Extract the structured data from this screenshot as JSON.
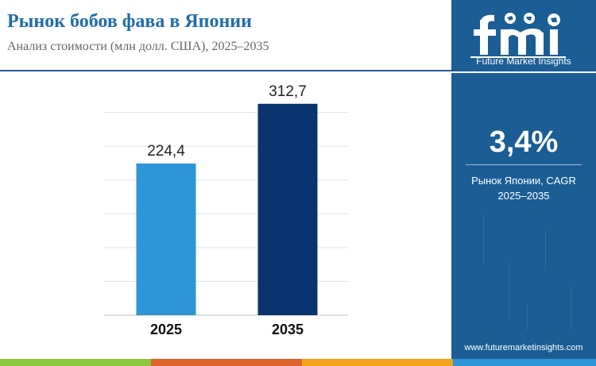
{
  "header": {
    "title": "Рынок бобов фава в Японии",
    "subtitle": "Анализ стоимости (млн долл. США), 2025–2035"
  },
  "chart_data": {
    "type": "bar",
    "categories": [
      "2025",
      "2035"
    ],
    "values": [
      224.4,
      312.7
    ],
    "value_labels": [
      "224,4",
      "312,7"
    ],
    "bar_colors": [
      "#2e95d6",
      "#0a3470"
    ],
    "ylim": [
      0,
      350
    ],
    "grid": true,
    "title": "",
    "xlabel": "",
    "ylabel": ""
  },
  "sidebar": {
    "logo_text": "fmi",
    "logo_subtitle": "Future Market Insights",
    "cagr_value": "3,4%",
    "cagr_label_line1": "Рынок Японии, CAGR",
    "cagr_label_line2": "2025–2035",
    "website": "www.futuremarketinsights.com"
  },
  "colors": {
    "title": "#1f6ea8",
    "sidebar_bg": "#1b5e96",
    "footer": [
      "#8dc63f",
      "#e0632c",
      "#f2a51a",
      "#2e95d6"
    ]
  }
}
